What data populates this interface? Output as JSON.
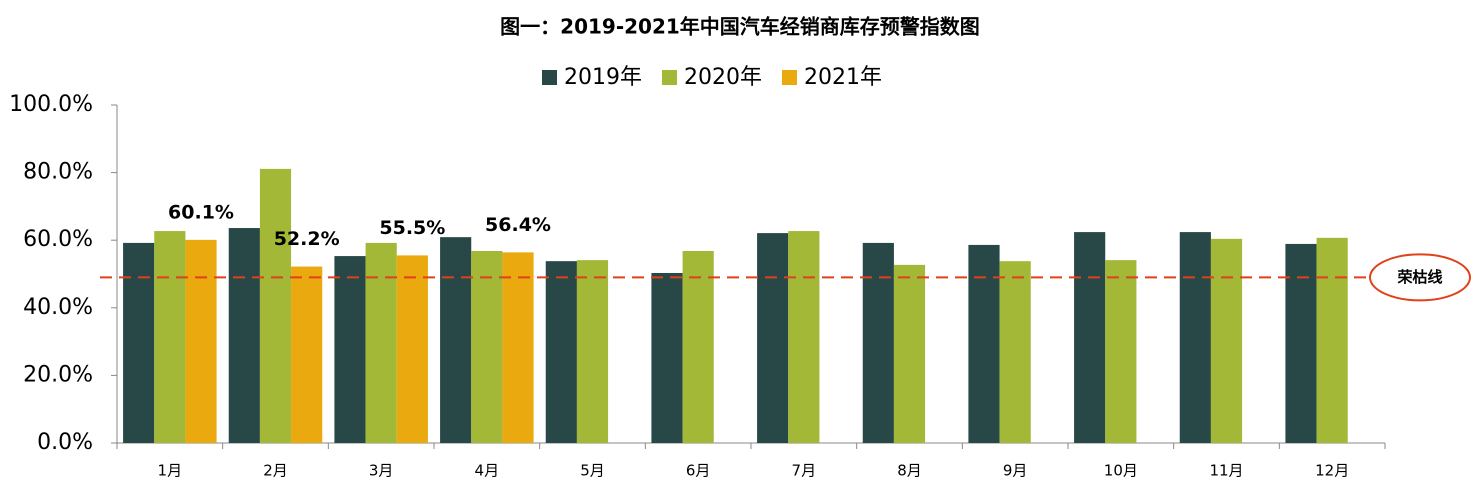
{
  "chart_data": {
    "type": "bar",
    "title": "图一：2019-2021年中国汽车经销商库存预警指数图",
    "categories": [
      "1月",
      "2月",
      "3月",
      "4月",
      "5月",
      "6月",
      "7月",
      "8月",
      "9月",
      "10月",
      "11月",
      "12月"
    ],
    "series": [
      {
        "name": "2019年",
        "color": "#284848",
        "values": [
          59.2,
          63.6,
          55.3,
          60.9,
          53.8,
          50.3,
          62.1,
          59.2,
          58.6,
          62.4,
          62.4,
          58.9
        ]
      },
      {
        "name": "2020年",
        "color": "#a3b836",
        "values": [
          62.7,
          81.1,
          59.2,
          56.8,
          54.1,
          56.8,
          62.7,
          52.7,
          53.8,
          54.1,
          60.4,
          60.7
        ]
      },
      {
        "name": "2021年",
        "color": "#eaa90f",
        "values": [
          60.1,
          52.2,
          55.5,
          56.4,
          null,
          null,
          null,
          null,
          null,
          null,
          null,
          null
        ],
        "value_labels": [
          "60.1%",
          "52.2%",
          "55.5%",
          "56.4%",
          null,
          null,
          null,
          null,
          null,
          null,
          null,
          null
        ]
      }
    ],
    "ylim": [
      0,
      100
    ],
    "yticks": [
      {
        "value": 0,
        "label": "0.0%"
      },
      {
        "value": 20,
        "label": "20.0%"
      },
      {
        "value": 40,
        "label": "40.0%"
      },
      {
        "value": 60,
        "label": "60.0%"
      },
      {
        "value": 80,
        "label": "80.0%"
      },
      {
        "value": 100,
        "label": "100.0%"
      }
    ],
    "threshold": {
      "label": "荣枯线",
      "value": 49,
      "color": "#e0401a"
    },
    "legend": "top",
    "grid": false
  }
}
